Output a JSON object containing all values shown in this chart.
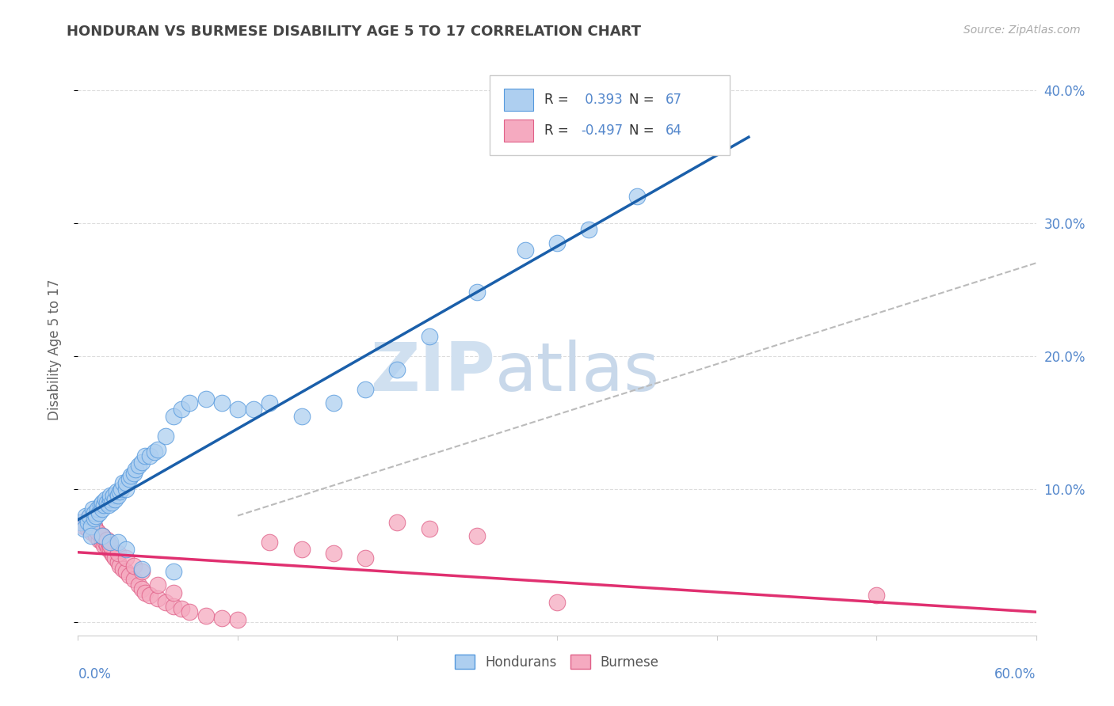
{
  "title": "HONDURAN VS BURMESE DISABILITY AGE 5 TO 17 CORRELATION CHART",
  "source": "Source: ZipAtlas.com",
  "ylabel": "Disability Age 5 to 17",
  "xlim": [
    0.0,
    0.6
  ],
  "ylim": [
    -0.01,
    0.42
  ],
  "honduran_R": 0.393,
  "honduran_N": 67,
  "burmese_R": -0.497,
  "burmese_N": 64,
  "honduran_color": "#aecff0",
  "honduran_edge_color": "#5599dd",
  "honduran_line_color": "#1a5faa",
  "burmese_color": "#f5aac0",
  "burmese_edge_color": "#e06088",
  "burmese_line_color": "#e03070",
  "dashed_line_color": "#bbbbbb",
  "background_color": "#ffffff",
  "grid_color": "#dddddd",
  "title_color": "#444444",
  "axis_label_color": "#5588cc",
  "ylabel_color": "#666666",
  "watermark_color_zip": "#d0e0f0",
  "watermark_color_atlas": "#c8d8ea",
  "honduran_x": [
    0.002,
    0.004,
    0.005,
    0.006,
    0.007,
    0.008,
    0.009,
    0.01,
    0.01,
    0.011,
    0.012,
    0.013,
    0.014,
    0.015,
    0.015,
    0.016,
    0.017,
    0.018,
    0.019,
    0.02,
    0.02,
    0.021,
    0.022,
    0.023,
    0.024,
    0.025,
    0.026,
    0.027,
    0.028,
    0.03,
    0.03,
    0.032,
    0.033,
    0.035,
    0.036,
    0.038,
    0.04,
    0.042,
    0.045,
    0.048,
    0.05,
    0.055,
    0.06,
    0.065,
    0.07,
    0.08,
    0.09,
    0.1,
    0.11,
    0.12,
    0.14,
    0.16,
    0.18,
    0.2,
    0.22,
    0.25,
    0.28,
    0.3,
    0.32,
    0.35,
    0.008,
    0.015,
    0.02,
    0.025,
    0.03,
    0.04,
    0.06
  ],
  "honduran_y": [
    0.075,
    0.07,
    0.08,
    0.075,
    0.08,
    0.072,
    0.085,
    0.078,
    0.082,
    0.08,
    0.085,
    0.082,
    0.088,
    0.085,
    0.09,
    0.088,
    0.092,
    0.09,
    0.088,
    0.092,
    0.095,
    0.09,
    0.095,
    0.092,
    0.098,
    0.095,
    0.098,
    0.1,
    0.105,
    0.1,
    0.105,
    0.108,
    0.11,
    0.112,
    0.115,
    0.118,
    0.12,
    0.125,
    0.125,
    0.128,
    0.13,
    0.14,
    0.155,
    0.16,
    0.165,
    0.168,
    0.165,
    0.16,
    0.16,
    0.165,
    0.155,
    0.165,
    0.175,
    0.19,
    0.215,
    0.248,
    0.28,
    0.285,
    0.295,
    0.32,
    0.065,
    0.065,
    0.06,
    0.06,
    0.055,
    0.04,
    0.038
  ],
  "burmese_x": [
    0.002,
    0.004,
    0.005,
    0.006,
    0.007,
    0.008,
    0.009,
    0.01,
    0.01,
    0.011,
    0.012,
    0.013,
    0.014,
    0.015,
    0.015,
    0.016,
    0.017,
    0.018,
    0.019,
    0.02,
    0.02,
    0.021,
    0.022,
    0.023,
    0.025,
    0.026,
    0.028,
    0.03,
    0.032,
    0.035,
    0.038,
    0.04,
    0.042,
    0.045,
    0.05,
    0.055,
    0.06,
    0.065,
    0.07,
    0.08,
    0.09,
    0.1,
    0.12,
    0.14,
    0.16,
    0.18,
    0.2,
    0.22,
    0.25,
    0.3,
    0.006,
    0.008,
    0.01,
    0.012,
    0.015,
    0.018,
    0.02,
    0.025,
    0.03,
    0.035,
    0.04,
    0.05,
    0.06,
    0.5
  ],
  "burmese_y": [
    0.075,
    0.072,
    0.075,
    0.07,
    0.072,
    0.068,
    0.07,
    0.068,
    0.072,
    0.065,
    0.068,
    0.062,
    0.065,
    0.06,
    0.065,
    0.058,
    0.06,
    0.058,
    0.055,
    0.058,
    0.055,
    0.052,
    0.05,
    0.048,
    0.045,
    0.042,
    0.04,
    0.038,
    0.035,
    0.032,
    0.028,
    0.025,
    0.022,
    0.02,
    0.018,
    0.015,
    0.012,
    0.01,
    0.008,
    0.005,
    0.003,
    0.002,
    0.06,
    0.055,
    0.052,
    0.048,
    0.075,
    0.07,
    0.065,
    0.015,
    0.078,
    0.075,
    0.072,
    0.068,
    0.065,
    0.062,
    0.058,
    0.052,
    0.048,
    0.042,
    0.038,
    0.028,
    0.022,
    0.02
  ]
}
